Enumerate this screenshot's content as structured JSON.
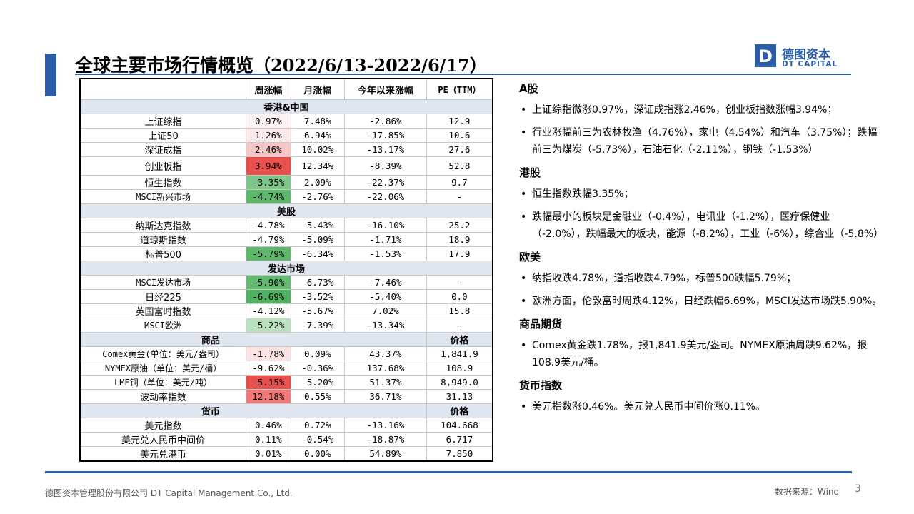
{
  "title": "全球主要市场行情概览",
  "title_date": "（2022/6/13-2022/6/17）",
  "logo": {
    "cn": "德图资本",
    "en": "DT CAPITAL",
    "mark": "D"
  },
  "table": {
    "headers": [
      "",
      "周涨幅",
      "月涨幅",
      "今年以来涨幅",
      "PE（TTM）"
    ],
    "sections": [
      {
        "title": "香港&中国",
        "rows": [
          [
            "上证综指",
            "0.97%",
            "7.48%",
            "-2.86%",
            "12.9"
          ],
          [
            "上证50",
            "1.26%",
            "6.94%",
            "-17.85%",
            "10.6"
          ],
          [
            "深证成指",
            "2.46%",
            "10.02%",
            "-13.17%",
            "27.6"
          ],
          [
            "创业板指",
            "3.94%",
            "12.34%",
            "-8.39%",
            "52.8"
          ],
          [
            "恒生指数",
            "-3.35%",
            "2.09%",
            "-22.37%",
            "9.7"
          ],
          [
            "MSCI新兴市场",
            "-4.74%",
            "-2.76%",
            "-22.06%",
            "-"
          ]
        ]
      },
      {
        "title": "美股",
        "rows": [
          [
            "纳斯达克指数",
            "-4.78%",
            "-5.43%",
            "-16.10%",
            "25.2"
          ],
          [
            "道琼斯指数",
            "-4.79%",
            "-5.09%",
            "-1.71%",
            "18.9"
          ],
          [
            "标普500",
            "-5.79%",
            "-6.34%",
            "-1.53%",
            "17.9"
          ]
        ]
      },
      {
        "title": "发达市场",
        "rows": [
          [
            "MSCI发达市场",
            "-5.90%",
            "-6.73%",
            "-7.46%",
            "-"
          ],
          [
            "日经225",
            "-6.69%",
            "-3.52%",
            "-5.40%",
            "0.0"
          ],
          [
            "英国富时指数",
            "-4.12%",
            "-5.67%",
            "7.02%",
            "15.8"
          ],
          [
            "MSCI欧洲",
            "-5.22%",
            "-7.39%",
            "-13.34%",
            "-"
          ]
        ]
      },
      {
        "title": "商品",
        "last_header": "价格",
        "rows": [
          [
            "Comex黄金(单位：美元/盎司）",
            "-1.78%",
            "0.09%",
            "43.37%",
            "1,841.9"
          ],
          [
            "NYMEX原油（单位：美元/桶）",
            "-9.62%",
            "-0.36%",
            "137.68%",
            "108.9"
          ],
          [
            "LME铜（单位：美元/吨）",
            "-5.15%",
            "-5.20%",
            "51.37%",
            "8,949.0"
          ],
          [
            "波动率指数",
            "12.18%",
            "0.55%",
            "36.71%",
            "31.13"
          ]
        ]
      },
      {
        "title": "货币",
        "last_header": "价格",
        "rows": [
          [
            "美元指数",
            "0.46%",
            "0.72%",
            "-13.16%",
            "104.668"
          ],
          [
            "美元兑人民币中间价",
            "0.11%",
            "-0.54%",
            "-18.87%",
            "6.717"
          ],
          [
            "美元兑港币",
            "0.01%",
            "0.00%",
            "54.89%",
            "7.850"
          ]
        ]
      }
    ],
    "heat_colors": {
      "0.97%": "#fdf3f3",
      "1.26%": "#fbe9e9",
      "2.46%": "#f6c6c6",
      "3.94%": "#e8504d",
      "-3.35%": "#7fc68a",
      "-4.74%": "#5db86b",
      "-5.79%": "#5db86b",
      "-5.90%": "#64ba71",
      "-6.69%": "#53b262",
      "-5.22%": "#b9e0bf",
      "-1.78%": "#fbe3e3",
      "-5.15%": "#e8504d",
      "12.18%": "#f07a78"
    }
  },
  "commentary": [
    {
      "heading": "A股",
      "bullets": [
        "上证综指微涨0.97%，深证成指涨2.46%，创业板指数涨幅3.94%；",
        "行业涨幅前三为农林牧渔（4.76%），家电（4.54%）和汽车（3.75%）；跌幅前三为煤炭（-5.73%），石油石化（-2.11%），钢铁（-1.53%）"
      ]
    },
    {
      "heading": "港股",
      "bullets": [
        "恒生指数跌幅3.35%；",
        "跌幅最小的板块是金融业（-0.4%），电讯业（-1.2%），医疗保健业（-2.0%），跌幅最大的板块，能源（-8.2%），工业（-6%），综合业（-5.8%）"
      ]
    },
    {
      "heading": "欧美",
      "bullets": [
        "纳指收跌4.78%，道指收跌4.79%，标普500跌幅5.79%；",
        "欧洲方面，伦敦富时周跌4.12%，日经跌幅6.69%，MSCI发达市场跌5.90%。"
      ]
    },
    {
      "heading": "商品期货",
      "bullets": [
        "Comex黄金跌1.78%，报1,841.9美元/盎司。NYMEX原油周跌9.62%，报108.9美元/桶。"
      ]
    },
    {
      "heading": "货币指数",
      "bullets": [
        "美元指数涨0.46%。美元兑人民币中间价涨0.11%。"
      ]
    }
  ],
  "footer": {
    "company": "德图资本管理股份有限公司  DT Capital Management Co., Ltd.",
    "source": "数据来源：Wind",
    "page": "3"
  }
}
